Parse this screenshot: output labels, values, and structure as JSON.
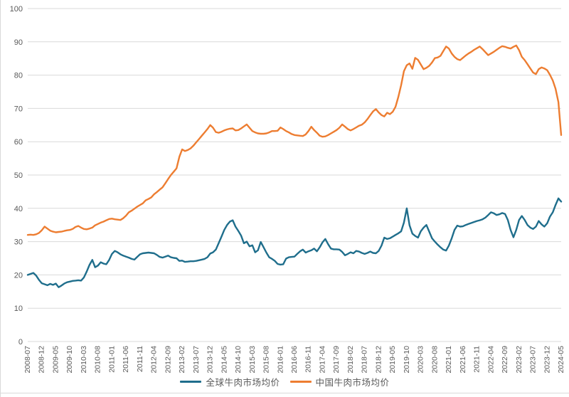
{
  "chart_data": {
    "type": "line",
    "title": "",
    "xlabel": "",
    "ylabel": "",
    "x_unit": "month",
    "x_start": "2008-07",
    "x_end": "2024-05",
    "points_per_series": 191,
    "tick_every_n_months": 5,
    "x_tick_labels": [
      "2008-07",
      "2008-12",
      "2009-05",
      "2009-10",
      "2010-03",
      "2010-08",
      "2011-01",
      "2011-06",
      "2011-11",
      "2012-04",
      "2012-09",
      "2013-02",
      "2013-07",
      "2013-12",
      "2014-05",
      "2014-10",
      "2015-03",
      "2015-08",
      "2016-01",
      "2016-06",
      "2016-11",
      "2017-04",
      "2017-09",
      "2018-02",
      "2018-07",
      "2018-12",
      "2019-05",
      "2019-10",
      "2020-03",
      "2020-08",
      "2021-01",
      "2021-06",
      "2021-11",
      "2022-04",
      "2022-09",
      "2023-02",
      "2023-07",
      "2023-12",
      "2024-05"
    ],
    "ylim": [
      0,
      100
    ],
    "y_ticks": [
      0,
      10,
      20,
      30,
      40,
      50,
      60,
      70,
      80,
      90,
      100
    ],
    "grid": true,
    "grid_color": "#D9D9D9",
    "axis_label_color": "#595959",
    "legend_position": "bottom-center",
    "series": [
      {
        "name": "全球牛肉市场均价",
        "color": "#1F6E8C",
        "values": [
          20.0,
          20.3,
          20.6,
          19.8,
          18.5,
          17.5,
          17.2,
          16.9,
          17.3,
          17.0,
          17.4,
          16.3,
          16.8,
          17.4,
          17.8,
          18.0,
          18.2,
          18.3,
          18.4,
          18.3,
          19.2,
          21.0,
          23.0,
          24.5,
          22.3,
          22.8,
          23.8,
          23.4,
          23.2,
          24.5,
          26.3,
          27.2,
          26.8,
          26.2,
          25.8,
          25.5,
          25.2,
          24.8,
          24.6,
          25.4,
          26.2,
          26.5,
          26.6,
          26.7,
          26.6,
          26.5,
          26.0,
          25.4,
          25.2,
          25.5,
          25.8,
          25.3,
          25.1,
          25.0,
          24.2,
          24.3,
          23.9,
          24.0,
          24.1,
          24.1,
          24.2,
          24.4,
          24.6,
          24.8,
          25.3,
          26.4,
          26.8,
          27.6,
          29.5,
          31.5,
          33.5,
          35.0,
          36.0,
          36.4,
          34.5,
          33.2,
          31.8,
          29.5,
          30.0,
          28.6,
          28.9,
          26.8,
          27.4,
          29.9,
          28.3,
          26.7,
          25.3,
          24.8,
          24.2,
          23.3,
          23.1,
          23.2,
          24.9,
          25.3,
          25.4,
          25.5,
          26.3,
          27.1,
          27.6,
          26.7,
          27.1,
          27.4,
          27.9,
          27.1,
          28.3,
          29.8,
          30.8,
          29.2,
          27.9,
          27.7,
          27.7,
          27.6,
          26.9,
          25.9,
          26.3,
          26.8,
          26.5,
          27.2,
          27.0,
          26.6,
          26.3,
          26.6,
          27.0,
          26.6,
          26.5,
          27.2,
          28.8,
          31.2,
          30.8,
          31.0,
          31.5,
          32.0,
          32.5,
          33.1,
          35.7,
          40.0,
          34.9,
          32.4,
          31.7,
          31.2,
          33.1,
          34.2,
          35.0,
          33.0,
          31.0,
          30.0,
          29.1,
          28.3,
          27.6,
          27.3,
          28.8,
          31.0,
          33.5,
          34.8,
          34.5,
          34.6,
          35.0,
          35.3,
          35.6,
          35.9,
          36.2,
          36.4,
          36.7,
          37.2,
          38.0,
          38.8,
          38.5,
          38.0,
          38.2,
          38.6,
          38.3,
          36.5,
          33.5,
          31.3,
          33.5,
          36.5,
          37.7,
          36.5,
          35.0,
          34.2,
          33.8,
          34.5,
          36.2,
          35.2,
          34.5,
          35.5,
          37.5,
          38.8,
          41.0,
          43.0,
          42.0
        ]
      },
      {
        "name": "中国牛肉市场均价",
        "color": "#ED7D31",
        "values": [
          32.0,
          32.1,
          32.0,
          32.2,
          32.6,
          33.4,
          34.5,
          33.9,
          33.3,
          33.0,
          32.8,
          32.9,
          33.0,
          33.2,
          33.4,
          33.5,
          33.8,
          34.4,
          34.7,
          34.2,
          33.8,
          33.7,
          33.9,
          34.2,
          34.9,
          35.3,
          35.7,
          36.0,
          36.4,
          36.8,
          36.9,
          36.7,
          36.6,
          36.5,
          37.0,
          37.8,
          38.8,
          39.3,
          39.9,
          40.5,
          41.0,
          41.5,
          42.4,
          42.8,
          43.3,
          44.2,
          44.9,
          45.6,
          46.3,
          47.5,
          48.8,
          50.0,
          51.0,
          52.0,
          55.5,
          57.7,
          57.2,
          57.5,
          58.0,
          58.8,
          59.8,
          60.8,
          61.8,
          62.8,
          63.8,
          65.0,
          64.2,
          62.9,
          62.7,
          63.0,
          63.4,
          63.7,
          63.9,
          64.0,
          63.4,
          63.5,
          64.0,
          64.6,
          65.2,
          64.2,
          63.2,
          62.8,
          62.5,
          62.4,
          62.4,
          62.5,
          62.8,
          63.2,
          63.2,
          63.3,
          64.3,
          63.8,
          63.2,
          62.8,
          62.3,
          62.0,
          61.9,
          61.8,
          61.7,
          62.2,
          63.2,
          64.5,
          63.5,
          62.7,
          61.8,
          61.5,
          61.6,
          62.0,
          62.5,
          63.0,
          63.5,
          64.2,
          65.2,
          64.5,
          63.8,
          63.4,
          63.8,
          64.3,
          64.8,
          65.1,
          65.8,
          66.8,
          68.0,
          69.1,
          69.8,
          68.8,
          68.0,
          67.6,
          68.7,
          68.3,
          69.0,
          70.5,
          73.5,
          77.0,
          81.2,
          83.0,
          83.5,
          81.9,
          85.2,
          84.6,
          83.2,
          81.8,
          82.2,
          82.8,
          83.8,
          85.1,
          85.3,
          85.8,
          87.2,
          88.6,
          88.0,
          86.5,
          85.5,
          84.8,
          84.5,
          85.2,
          85.9,
          86.5,
          87.0,
          87.6,
          88.1,
          88.6,
          87.8,
          86.9,
          86.0,
          86.5,
          87.0,
          87.6,
          88.2,
          88.7,
          88.5,
          88.2,
          88.0,
          88.5,
          88.9,
          87.5,
          85.5,
          84.5,
          83.3,
          82.0,
          80.8,
          80.3,
          81.8,
          82.3,
          82.0,
          81.5,
          80.1,
          78.4,
          75.9,
          71.9,
          62.0
        ]
      }
    ]
  }
}
